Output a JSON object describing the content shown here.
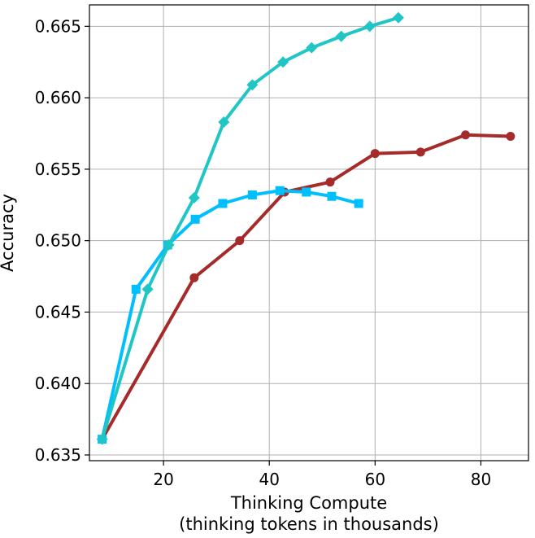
{
  "chart_data": {
    "type": "line",
    "title": "",
    "xlabel_line1": "Thinking Compute",
    "xlabel_line2": "(thinking tokens in thousands)",
    "ylabel": "Accuracy",
    "xlim": [
      6,
      89
    ],
    "ylim": [
      0.6346,
      0.6665
    ],
    "x_ticks": [
      20,
      40,
      60,
      80
    ],
    "y_ticks": [
      0.635,
      0.64,
      0.645,
      0.65,
      0.655,
      0.66,
      0.665
    ],
    "y_tick_labels": [
      "0.635",
      "0.640",
      "0.645",
      "0.650",
      "0.655",
      "0.660",
      "0.665"
    ],
    "x_tick_labels": [
      "20",
      "40",
      "60",
      "80"
    ],
    "grid": true,
    "legend": "none",
    "series": [
      {
        "color": "#a52a2a",
        "marker": "circle",
        "x": [
          8.4,
          25.8,
          34.4,
          42.9,
          51.5,
          60.0,
          68.6,
          77.1,
          85.6
        ],
        "y": [
          0.6361,
          0.6474,
          0.65,
          0.6534,
          0.6541,
          0.6561,
          0.6562,
          0.6574,
          0.6573
        ]
      },
      {
        "color": "#00bfff",
        "marker": "square",
        "x": [
          8.4,
          14.8,
          20.8,
          26.0,
          31.2,
          36.8,
          42.0,
          47.0,
          51.8,
          56.9
        ],
        "y": [
          0.6361,
          0.6466,
          0.6497,
          0.6515,
          0.6526,
          0.6532,
          0.6535,
          0.6534,
          0.6531,
          0.6526
        ]
      },
      {
        "color": "#20c6c6",
        "marker": "diamond",
        "x": [
          8.4,
          17.0,
          21.0,
          25.8,
          31.4,
          36.8,
          42.6,
          48.0,
          53.6,
          59.0,
          64.4
        ],
        "y": [
          0.6361,
          0.6466,
          0.6497,
          0.653,
          0.6583,
          0.6609,
          0.6625,
          0.6635,
          0.6643,
          0.665,
          0.6656
        ]
      }
    ]
  }
}
